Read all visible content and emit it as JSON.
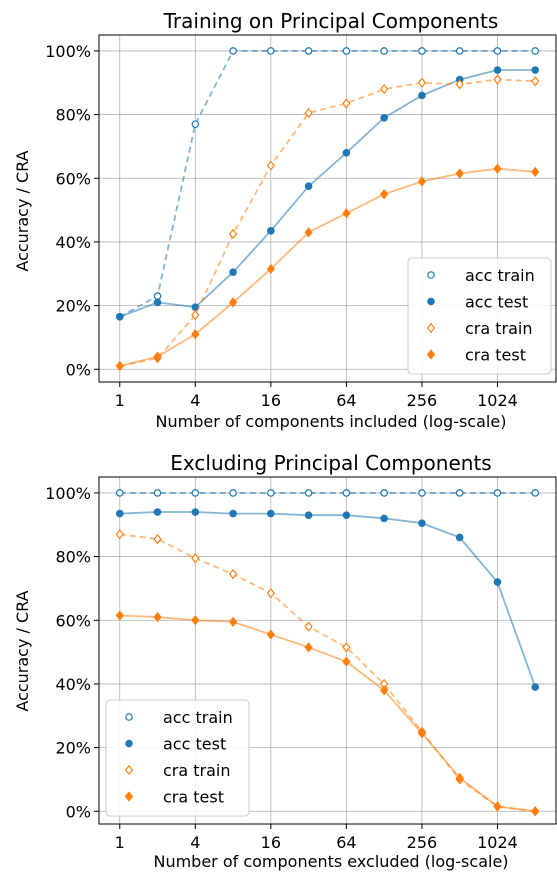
{
  "colors": {
    "acc": "#1f77b4",
    "cra": "#ff7f0e"
  },
  "chart_data": [
    {
      "type": "line",
      "title": "Training on Principal Components",
      "xlabel": "Number of components included (log-scale)",
      "ylabel": "Accuracy / CRA",
      "x_scale": "log2",
      "x": [
        1,
        2,
        4,
        8,
        16,
        32,
        64,
        128,
        256,
        512,
        1024,
        2048
      ],
      "xticks": [
        1,
        4,
        16,
        64,
        256,
        1024
      ],
      "xtick_labels": [
        "1",
        "4",
        "16",
        "64",
        "256",
        "1024"
      ],
      "yticks": [
        0,
        20,
        40,
        60,
        80,
        100
      ],
      "ytick_labels": [
        "0%",
        "20%",
        "40%",
        "60%",
        "80%",
        "100%"
      ],
      "ylim": [
        -4,
        105
      ],
      "grid": true,
      "legend_position": "lower-right",
      "series": [
        {
          "name": "acc train",
          "color": "acc",
          "style": "dashed",
          "marker": "circle-open",
          "values": [
            16.5,
            23,
            77,
            100,
            100,
            100,
            100,
            100,
            100,
            100,
            100,
            100
          ]
        },
        {
          "name": "acc test",
          "color": "acc",
          "style": "solid",
          "marker": "circle-filled",
          "values": [
            16.5,
            21,
            19.5,
            30.5,
            43.5,
            57.5,
            68,
            79,
            86,
            91,
            94,
            94
          ]
        },
        {
          "name": "cra train",
          "color": "cra",
          "style": "dashed",
          "marker": "diamond-open",
          "values": [
            1,
            3.5,
            17,
            42.5,
            64,
            80.5,
            83.5,
            88,
            90,
            89.5,
            91,
            90.5
          ]
        },
        {
          "name": "cra test",
          "color": "cra",
          "style": "solid",
          "marker": "diamond-filled",
          "values": [
            1,
            4,
            11,
            21,
            31.5,
            43,
            49,
            55,
            59,
            61.5,
            63,
            62
          ]
        }
      ]
    },
    {
      "type": "line",
      "title": "Excluding Principal Components",
      "xlabel": "Number of components excluded (log-scale)",
      "ylabel": "Accuracy / CRA",
      "x_scale": "log2",
      "x": [
        1,
        2,
        4,
        8,
        16,
        32,
        64,
        128,
        256,
        512,
        1024,
        2048
      ],
      "xticks": [
        1,
        4,
        16,
        64,
        256,
        1024
      ],
      "xtick_labels": [
        "1",
        "4",
        "16",
        "64",
        "256",
        "1024"
      ],
      "yticks": [
        0,
        20,
        40,
        60,
        80,
        100
      ],
      "ytick_labels": [
        "0%",
        "20%",
        "40%",
        "60%",
        "80%",
        "100%"
      ],
      "ylim": [
        -4,
        105
      ],
      "grid": true,
      "legend_position": "lower-left",
      "series": [
        {
          "name": "acc train",
          "color": "acc",
          "style": "dashed",
          "marker": "circle-open",
          "values": [
            100,
            100,
            100,
            100,
            100,
            100,
            100,
            100,
            100,
            100,
            100,
            100
          ]
        },
        {
          "name": "acc test",
          "color": "acc",
          "style": "solid",
          "marker": "circle-filled",
          "values": [
            93.5,
            94,
            94,
            93.5,
            93.5,
            93,
            93,
            92,
            90.5,
            86,
            72,
            39
          ]
        },
        {
          "name": "cra train",
          "color": "cra",
          "style": "dashed",
          "marker": "diamond-open",
          "values": [
            87,
            85.5,
            79.5,
            74.5,
            68.5,
            58,
            51.5,
            40,
            25,
            10,
            1.5,
            0
          ]
        },
        {
          "name": "cra test",
          "color": "cra",
          "style": "solid",
          "marker": "diamond-filled",
          "values": [
            61.5,
            61,
            60,
            59.5,
            55.5,
            51.5,
            47,
            38,
            24.5,
            10.5,
            1.5,
            0
          ]
        }
      ]
    }
  ]
}
